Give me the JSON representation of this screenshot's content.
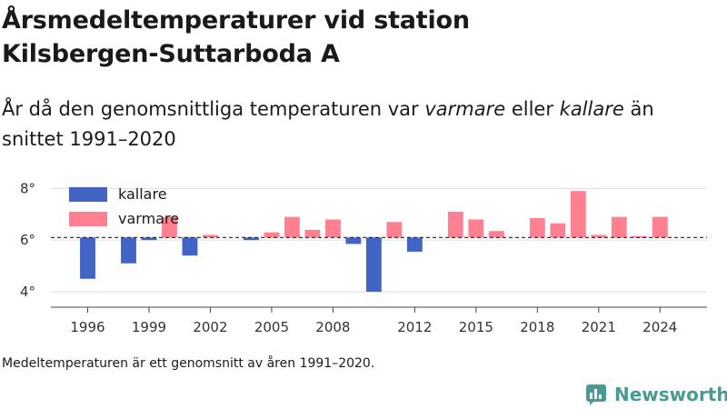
{
  "title_line1": "Årsmedeltemperaturer vid station",
  "title_line2": "Kilsbergen-Suttarboda A",
  "subtitle": {
    "part1": "År då den genomsnittliga temperaturen var ",
    "warm_word": "varmare",
    "part2": " eller ",
    "cold_word": "kallare",
    "part3": " än snittet 1991–2020"
  },
  "footnote": "Medeltemperaturen är ett genomsnitt av åren 1991–2020.",
  "brand": {
    "name": "Newsworthy",
    "color": "#4a9a94",
    "icon": "newsworthy-logo-icon"
  },
  "colors": {
    "cold": "#4264c4",
    "warm": "#ff8191",
    "grid": "#dddddd",
    "axis": "#444444"
  },
  "chart_data": {
    "type": "bar",
    "baseline": 6.1,
    "baseline_style": "dashed",
    "ylim": [
      3.4,
      8.4
    ],
    "yticks": [
      4,
      6,
      8
    ],
    "ytick_labels": [
      "4°",
      "6°",
      "8°"
    ],
    "xticks": [
      1996,
      1999,
      2002,
      2005,
      2008,
      2012,
      2015,
      2018,
      2021,
      2024
    ],
    "xtick_labels": [
      "1996",
      "1999",
      "2002",
      "2005",
      "2008",
      "2012",
      "2015",
      "2018",
      "2021",
      "2024"
    ],
    "xlim": [
      1994.2,
      2026.3
    ],
    "grid": true,
    "legend_position": "top-left",
    "series": [
      {
        "name": "kallare",
        "color": "#4264c4"
      },
      {
        "name": "varmare",
        "color": "#ff8191"
      }
    ],
    "data": [
      {
        "year": 1996,
        "value": 4.5
      },
      {
        "year": 1998,
        "value": 5.1
      },
      {
        "year": 1999,
        "value": 6.0
      },
      {
        "year": 2000,
        "value": 6.9
      },
      {
        "year": 2001,
        "value": 5.4
      },
      {
        "year": 2002,
        "value": 6.2
      },
      {
        "year": 2004,
        "value": 6.0
      },
      {
        "year": 2005,
        "value": 6.3
      },
      {
        "year": 2006,
        "value": 6.9
      },
      {
        "year": 2007,
        "value": 6.4
      },
      {
        "year": 2008,
        "value": 6.8
      },
      {
        "year": 2009,
        "value": 5.85
      },
      {
        "year": 2010,
        "value": 4.0
      },
      {
        "year": 2011,
        "value": 6.7
      },
      {
        "year": 2012,
        "value": 5.55
      },
      {
        "year": 2014,
        "value": 7.1
      },
      {
        "year": 2015,
        "value": 6.8
      },
      {
        "year": 2016,
        "value": 6.35
      },
      {
        "year": 2018,
        "value": 6.85
      },
      {
        "year": 2019,
        "value": 6.65
      },
      {
        "year": 2020,
        "value": 7.9
      },
      {
        "year": 2021,
        "value": 6.2
      },
      {
        "year": 2022,
        "value": 6.9
      },
      {
        "year": 2023,
        "value": 6.15
      },
      {
        "year": 2024,
        "value": 6.9
      }
    ]
  }
}
